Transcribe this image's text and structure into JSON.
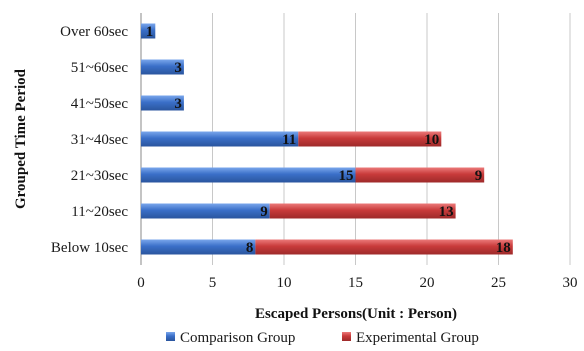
{
  "chart_data": {
    "type": "bar",
    "orientation": "horizontal",
    "stacked": true,
    "categories": [
      "Over 60sec",
      "51~60sec",
      "41~50sec",
      "31~40sec",
      "21~30sec",
      "11~20sec",
      "Below 10sec"
    ],
    "series": [
      {
        "name": "Comparison Group",
        "values": [
          1,
          3,
          3,
          11,
          15,
          9,
          8
        ],
        "color": "#3a6fc8"
      },
      {
        "name": "Experimental Group",
        "values": [
          null,
          null,
          null,
          10,
          9,
          13,
          18
        ],
        "color": "#c83a3a"
      }
    ],
    "xlabel": "Escaped Persons(Unit : Person)",
    "ylabel": "Grouped Time Period",
    "xlim": [
      0,
      30
    ],
    "xticks": [
      0,
      5,
      10,
      15,
      20,
      25,
      30
    ],
    "grid": "vertical",
    "legend_position": "bottom"
  }
}
